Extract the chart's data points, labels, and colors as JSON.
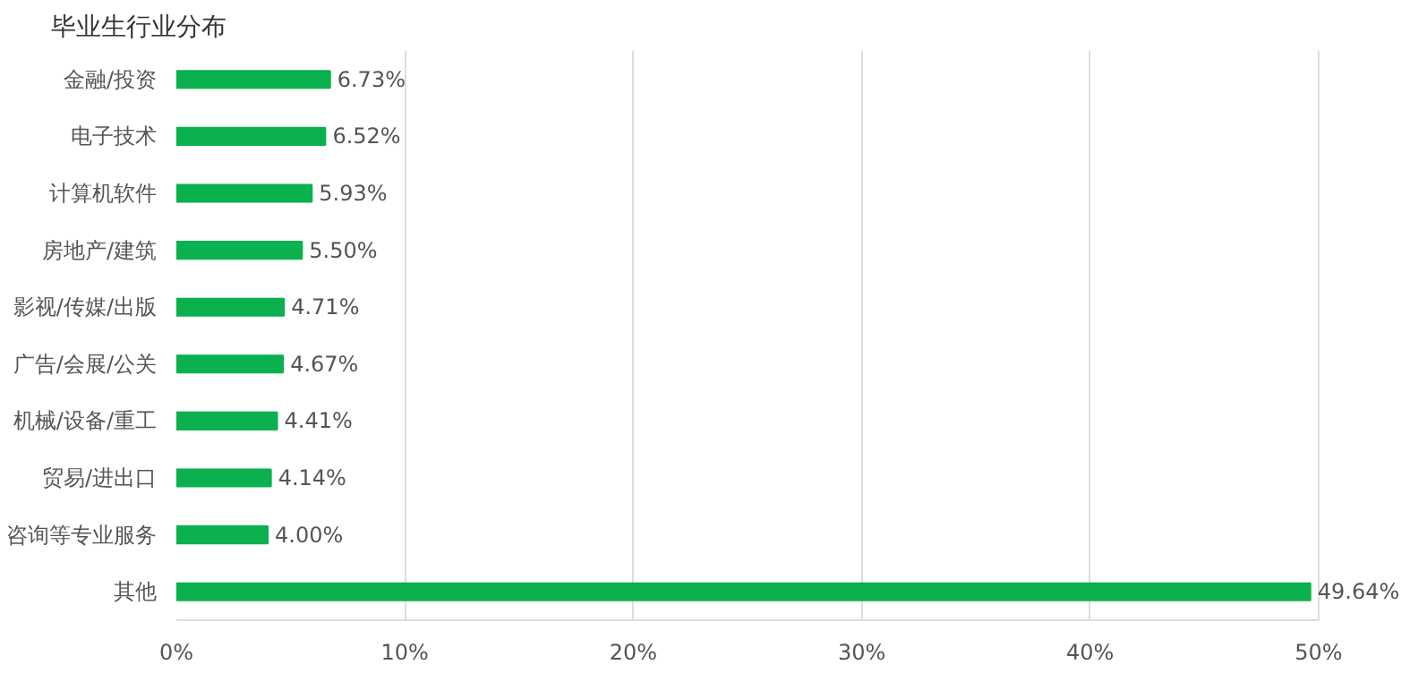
{
  "chart_data": {
    "type": "bar",
    "orientation": "horizontal",
    "title": "毕业生行业分布",
    "categories": [
      "金融/投资",
      "电子技术",
      "计算机软件",
      "房地产/建筑",
      "影视/传媒/出版",
      "广告/会展/公关",
      "机械/设备/重工",
      "贸易/进出口",
      "咨询等专业服务",
      "其他"
    ],
    "values": [
      6.73,
      6.52,
      5.93,
      5.5,
      4.71,
      4.67,
      4.41,
      4.14,
      4.0,
      49.64
    ],
    "value_labels": [
      "6.73%",
      "6.52%",
      "5.93%",
      "5.50%",
      "4.71%",
      "4.67%",
      "4.41%",
      "4.14%",
      "4.00%",
      "49.64%"
    ],
    "color": "#0bb14e",
    "xlim": [
      0,
      50
    ],
    "xticks": [
      {
        "value": 0,
        "label": "0%"
      },
      {
        "value": 10,
        "label": "10%"
      },
      {
        "value": 20,
        "label": "20%"
      },
      {
        "value": 30,
        "label": "30%"
      },
      {
        "value": 40,
        "label": "40%"
      },
      {
        "value": 50,
        "label": "50%"
      }
    ],
    "grid": "x"
  }
}
